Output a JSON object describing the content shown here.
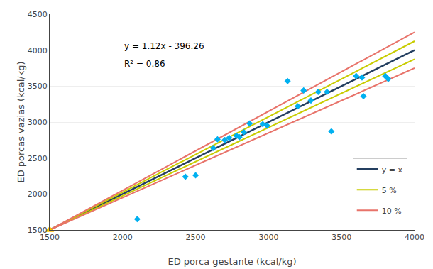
{
  "chart_data": {
    "type": "scatter",
    "xlabel": "ED porca gestante (kcal/kg)",
    "ylabel": "ED porcas vazias (kcal/kg)",
    "annotations": [
      "y = 1.12x - 396.26",
      "R² = 0.86"
    ],
    "series": [
      {
        "name": "y = x",
        "type": "line",
        "color": "#243f60",
        "x": [
          1500,
          4000
        ],
        "values": [
          1500,
          4000
        ]
      },
      {
        "name": "5 %",
        "type": "line",
        "color": "#c8cc00",
        "x": [
          1500,
          4000
        ],
        "values": [
          1500,
          4125
        ]
      },
      {
        "name": "5 %",
        "type": "line",
        "color": "#c8cc00",
        "x": [
          1500,
          4000
        ],
        "values": [
          1500,
          3875
        ]
      },
      {
        "name": "10 %",
        "type": "line",
        "color": "#e8736a",
        "x": [
          1500,
          4000
        ],
        "values": [
          1500,
          4250
        ]
      },
      {
        "name": "10 %",
        "type": "line",
        "color": "#e8736a",
        "x": [
          1500,
          4000
        ],
        "values": [
          1500,
          3750
        ]
      },
      {
        "type": "scatter",
        "color": "#00b0f0",
        "marker": "diamond",
        "x": [
          2100,
          2430,
          2500,
          2620,
          2650,
          2700,
          2730,
          2780,
          2800,
          2830,
          2870,
          2960,
          2990,
          3130,
          3200,
          3240,
          3290,
          3340,
          3400,
          3430,
          3600,
          3640,
          3650,
          3800,
          3820
        ],
        "values": [
          1650,
          2240,
          2260,
          2640,
          2760,
          2750,
          2780,
          2810,
          2790,
          2860,
          2980,
          2970,
          2950,
          3570,
          3220,
          3440,
          3300,
          3420,
          3420,
          2870,
          3640,
          3620,
          3360,
          3640,
          3600
        ]
      },
      {
        "type": "scatter",
        "color": "#ffc000",
        "marker": "triangle-up",
        "x": [
          1500
        ],
        "values": [
          1500
        ]
      }
    ],
    "xlim": [
      1500,
      4000
    ],
    "ylim": [
      1500,
      4500
    ],
    "xticks": [
      1500,
      2000,
      2500,
      3000,
      3500,
      4000
    ],
    "yticks": [
      1500,
      2000,
      2500,
      3000,
      3500,
      4000,
      4500
    ],
    "grid": "y",
    "legend": "lower right"
  }
}
